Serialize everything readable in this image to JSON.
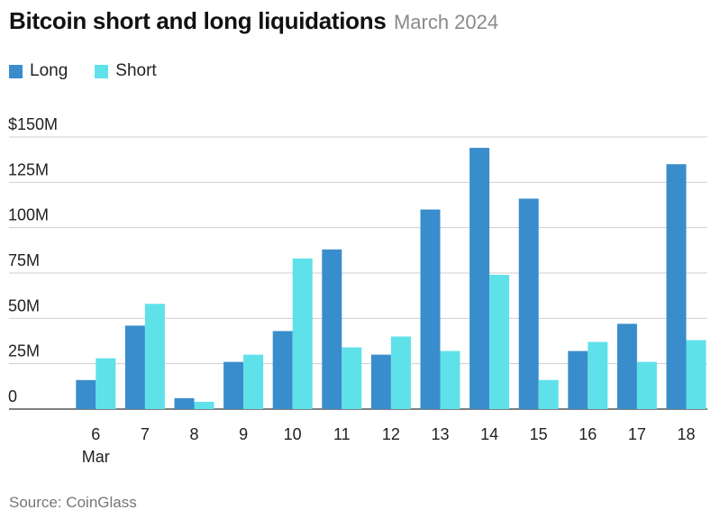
{
  "title": "Bitcoin short and long liquidations",
  "subtitle": "March 2024",
  "source": "Source: CoinGlass",
  "legend": [
    {
      "label": "Long",
      "color": "#3a8dcc"
    },
    {
      "label": "Short",
      "color": "#5fe1ea"
    }
  ],
  "chart_data": {
    "type": "bar",
    "title": "Bitcoin short and long liquidations",
    "subtitle": "March 2024",
    "categories": [
      "6",
      "7",
      "8",
      "9",
      "10",
      "11",
      "12",
      "13",
      "14",
      "15",
      "16",
      "17",
      "18"
    ],
    "category_sublabels": {
      "0": "Mar"
    },
    "series": [
      {
        "name": "Long",
        "color": "#3a8dcc",
        "values": [
          16,
          46,
          6,
          26,
          43,
          88,
          30,
          110,
          144,
          116,
          32,
          47,
          135
        ]
      },
      {
        "name": "Short",
        "color": "#5fe1ea",
        "values": [
          28,
          58,
          4,
          30,
          83,
          34,
          40,
          32,
          74,
          16,
          37,
          26,
          38
        ]
      }
    ],
    "yticks": [
      {
        "value": 150,
        "label": "$150M"
      },
      {
        "value": 125,
        "label": "125M"
      },
      {
        "value": 100,
        "label": "100M"
      },
      {
        "value": 75,
        "label": "75M"
      },
      {
        "value": 50,
        "label": "50M"
      },
      {
        "value": 25,
        "label": "25M"
      },
      {
        "value": 0,
        "label": "0"
      }
    ],
    "ylim": [
      0,
      150
    ],
    "xlabel": "",
    "ylabel": "",
    "grid": true,
    "legend_position": "top-left"
  }
}
